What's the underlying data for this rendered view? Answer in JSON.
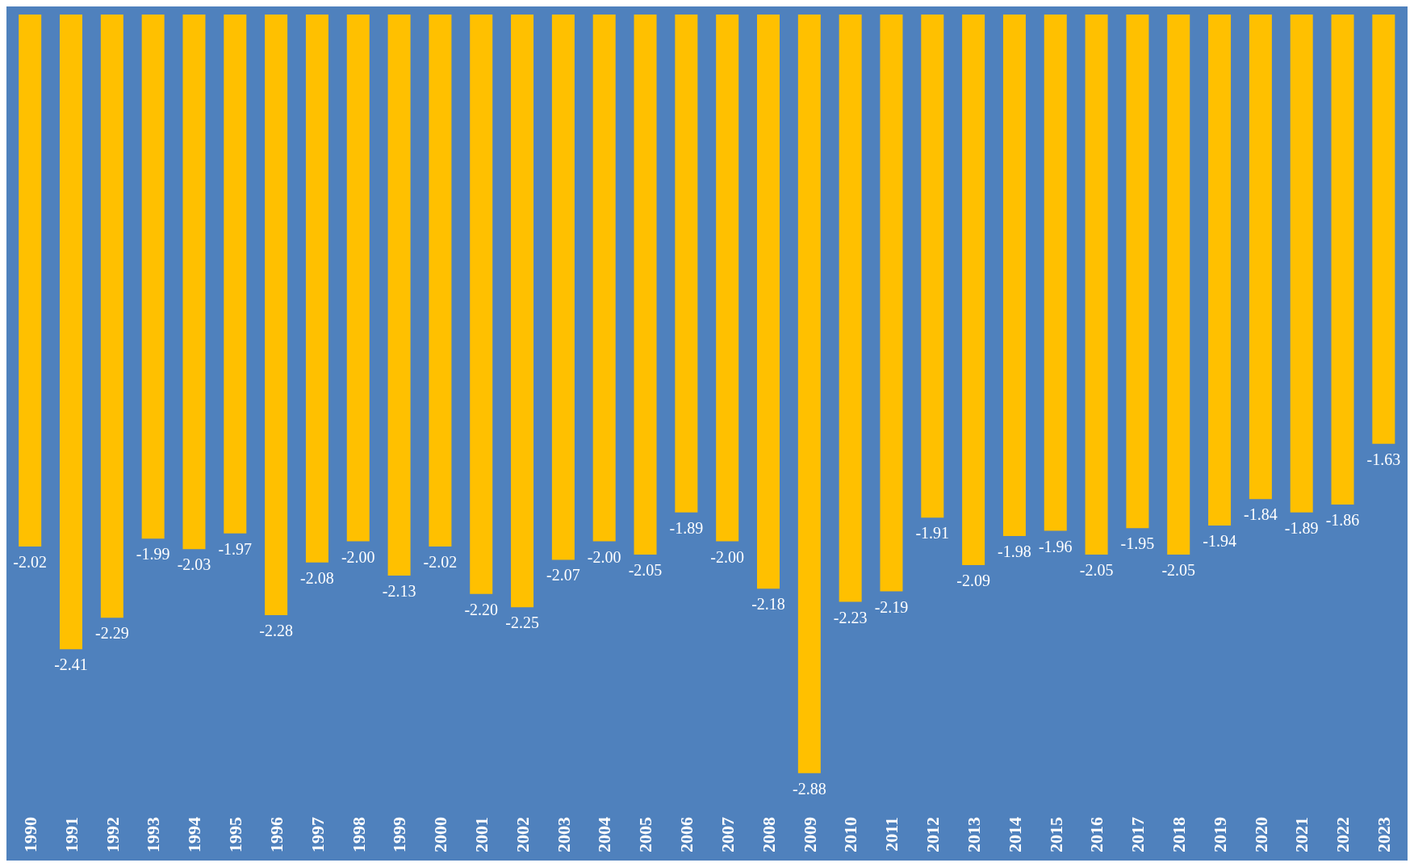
{
  "chart_data": {
    "type": "bar",
    "categories": [
      "1990",
      "1991",
      "1992",
      "1993",
      "1994",
      "1995",
      "1996",
      "1997",
      "1998",
      "1999",
      "2000",
      "2001",
      "2002",
      "2003",
      "2004",
      "2005",
      "2006",
      "2007",
      "2008",
      "2009",
      "2010",
      "2011",
      "2012",
      "2013",
      "2014",
      "2015",
      "2016",
      "2017",
      "2018",
      "2019",
      "2020",
      "2021",
      "2022",
      "2023"
    ],
    "values": [
      -2.02,
      -2.41,
      -2.29,
      -1.99,
      -2.03,
      -1.97,
      -2.28,
      -2.08,
      -2.0,
      -2.13,
      -2.02,
      -2.2,
      -2.25,
      -2.07,
      -2.0,
      -2.05,
      -1.89,
      -2.0,
      -2.18,
      -2.88,
      -2.23,
      -2.19,
      -1.91,
      -2.09,
      -1.98,
      -1.96,
      -2.05,
      -1.95,
      -2.05,
      -1.94,
      -1.84,
      -1.89,
      -1.86,
      -1.63
    ],
    "value_labels": [
      "-2.02",
      "-2.41",
      "-2.29",
      "-1.99",
      "-2.03",
      "-1.97",
      "-2.28",
      "-2.08",
      "-2.00",
      "-2.13",
      "-2.02",
      "-2.20",
      "-2.25",
      "-2.07",
      "-2.00",
      "-2.05",
      "-1.89",
      "-2.00",
      "-2.18",
      "-2.88",
      "-2.23",
      "-2.19",
      "-1.91",
      "-2.09",
      "-1.98",
      "-1.96",
      "-2.05",
      "-1.95",
      "-2.05",
      "-1.94",
      "-1.84",
      "-1.89",
      "-1.86",
      "-1.63"
    ],
    "color": "#ffc000"
  }
}
